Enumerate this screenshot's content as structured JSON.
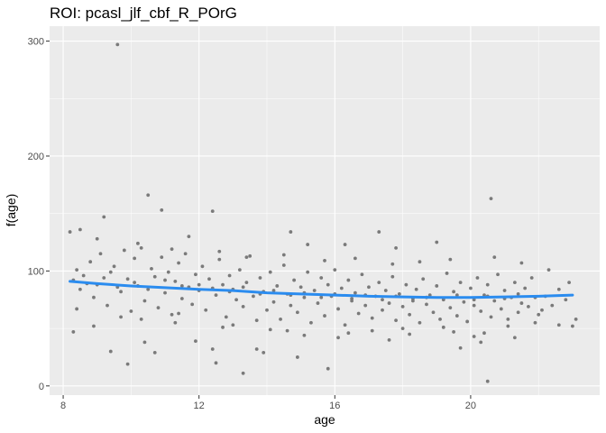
{
  "chart_data": {
    "type": "scatter",
    "title": "ROI: pcasl_jlf_cbf_R_POrG",
    "xlabel": "age",
    "ylabel": "f(age)",
    "xlim": [
      7.6,
      23.8
    ],
    "ylim": [
      -8,
      313
    ],
    "x_ticks": [
      8,
      12,
      16,
      20
    ],
    "x_tick_labels": [
      "8",
      "12",
      "16",
      "20"
    ],
    "y_ticks": [
      0,
      100,
      200,
      300
    ],
    "y_tick_labels": [
      "0",
      "100",
      "200",
      "300"
    ],
    "grid": true,
    "legend": "none",
    "colors": {
      "panel": "#ebebeb",
      "grid": "#ffffff",
      "points": "#7a7a7a",
      "fit_line": "#2b8cef"
    },
    "points": [
      [
        9.6,
        297
      ],
      [
        10.5,
        166
      ],
      [
        10.9,
        153
      ],
      [
        12.4,
        152
      ],
      [
        9.2,
        147
      ],
      [
        20.6,
        163
      ],
      [
        14.7,
        134
      ],
      [
        17.3,
        134
      ],
      [
        8.2,
        134
      ],
      [
        8.5,
        136
      ],
      [
        11.7,
        130
      ],
      [
        19.0,
        125
      ],
      [
        15.2,
        123
      ],
      [
        16.3,
        123
      ],
      [
        17.8,
        120
      ],
      [
        9.4,
        30
      ],
      [
        9.9,
        19
      ],
      [
        10.4,
        38
      ],
      [
        10.7,
        29
      ],
      [
        11.9,
        39
      ],
      [
        12.4,
        32
      ],
      [
        12.5,
        20
      ],
      [
        13.3,
        11
      ],
      [
        13.7,
        32
      ],
      [
        13.9,
        29
      ],
      [
        14.9,
        25
      ],
      [
        15.8,
        15
      ],
      [
        17.6,
        40
      ],
      [
        19.7,
        33
      ],
      [
        20.3,
        38
      ],
      [
        20.4,
        46
      ],
      [
        20.5,
        4
      ],
      [
        21.3,
        42
      ],
      [
        8.3,
        47
      ],
      [
        8.9,
        52
      ],
      [
        10.3,
        58
      ],
      [
        11.4,
        63
      ],
      [
        13.0,
        53
      ],
      [
        14.1,
        49
      ],
      [
        15.1,
        44
      ],
      [
        16.1,
        42
      ],
      [
        17.1,
        48
      ],
      [
        18.2,
        45
      ],
      [
        19.2,
        51
      ],
      [
        20.1,
        43
      ],
      [
        21.9,
        55
      ],
      [
        22.6,
        53
      ],
      [
        23.0,
        52
      ],
      [
        22.9,
        90
      ],
      [
        23.1,
        58
      ],
      [
        8.3,
        92
      ],
      [
        8.4,
        101
      ],
      [
        8.5,
        84
      ],
      [
        8.6,
        96
      ],
      [
        8.8,
        108
      ],
      [
        8.9,
        77
      ],
      [
        9.0,
        88
      ],
      [
        9.1,
        115
      ],
      [
        9.3,
        70
      ],
      [
        9.4,
        99
      ],
      [
        9.5,
        104
      ],
      [
        9.7,
        82
      ],
      [
        9.8,
        118
      ],
      [
        9.9,
        93
      ],
      [
        10.0,
        65
      ],
      [
        10.1,
        111
      ],
      [
        10.2,
        87
      ],
      [
        10.3,
        120
      ],
      [
        10.4,
        74
      ],
      [
        10.6,
        102
      ],
      [
        10.7,
        95
      ],
      [
        10.8,
        68
      ],
      [
        10.9,
        112
      ],
      [
        11.0,
        81
      ],
      [
        11.1,
        99
      ],
      [
        11.2,
        62
      ],
      [
        11.3,
        91
      ],
      [
        11.4,
        107
      ],
      [
        11.5,
        76
      ],
      [
        11.6,
        115
      ],
      [
        11.7,
        86
      ],
      [
        11.8,
        71
      ],
      [
        11.9,
        97
      ],
      [
        12.0,
        83
      ],
      [
        12.1,
        104
      ],
      [
        12.2,
        66
      ],
      [
        12.3,
        93
      ],
      [
        12.5,
        79
      ],
      [
        12.6,
        110
      ],
      [
        12.7,
        88
      ],
      [
        12.8,
        60
      ],
      [
        12.9,
        96
      ],
      [
        13.0,
        84
      ],
      [
        13.1,
        75
      ],
      [
        13.2,
        101
      ],
      [
        13.3,
        69
      ],
      [
        13.4,
        90
      ],
      [
        13.5,
        113
      ],
      [
        13.6,
        78
      ],
      [
        13.7,
        57
      ],
      [
        13.8,
        94
      ],
      [
        13.9,
        82
      ],
      [
        14.0,
        66
      ],
      [
        14.1,
        99
      ],
      [
        14.2,
        73
      ],
      [
        14.3,
        87
      ],
      [
        14.4,
        58
      ],
      [
        14.5,
        105
      ],
      [
        14.6,
        80
      ],
      [
        14.7,
        70
      ],
      [
        14.8,
        92
      ],
      [
        14.9,
        64
      ],
      [
        15.0,
        86
      ],
      [
        15.1,
        77
      ],
      [
        15.2,
        99
      ],
      [
        15.3,
        55
      ],
      [
        15.4,
        83
      ],
      [
        15.5,
        72
      ],
      [
        15.6,
        94
      ],
      [
        15.7,
        61
      ],
      [
        15.8,
        88
      ],
      [
        15.9,
        78
      ],
      [
        16.0,
        101
      ],
      [
        16.1,
        67
      ],
      [
        16.2,
        85
      ],
      [
        16.3,
        53
      ],
      [
        16.4,
        92
      ],
      [
        16.5,
        74
      ],
      [
        16.6,
        81
      ],
      [
        16.7,
        63
      ],
      [
        16.8,
        97
      ],
      [
        16.9,
        70
      ],
      [
        17.0,
        86
      ],
      [
        17.1,
        59
      ],
      [
        17.2,
        78
      ],
      [
        17.3,
        90
      ],
      [
        17.4,
        66
      ],
      [
        17.5,
        83
      ],
      [
        17.6,
        72
      ],
      [
        17.7,
        95
      ],
      [
        17.8,
        57
      ],
      [
        17.9,
        80
      ],
      [
        18.0,
        69
      ],
      [
        18.1,
        88
      ],
      [
        18.2,
        62
      ],
      [
        18.3,
        76
      ],
      [
        18.4,
        84
      ],
      [
        18.5,
        55
      ],
      [
        18.6,
        93
      ],
      [
        18.7,
        71
      ],
      [
        18.8,
        79
      ],
      [
        18.9,
        64
      ],
      [
        19.0,
        87
      ],
      [
        19.1,
        58
      ],
      [
        19.2,
        75
      ],
      [
        19.3,
        98
      ],
      [
        19.4,
        68
      ],
      [
        19.5,
        82
      ],
      [
        19.6,
        61
      ],
      [
        19.7,
        90
      ],
      [
        19.8,
        73
      ],
      [
        19.9,
        56
      ],
      [
        20.0,
        85
      ],
      [
        20.1,
        70
      ],
      [
        20.2,
        94
      ],
      [
        20.3,
        65
      ],
      [
        20.4,
        79
      ],
      [
        20.5,
        88
      ],
      [
        20.6,
        60
      ],
      [
        20.7,
        74
      ],
      [
        20.8,
        97
      ],
      [
        20.9,
        67
      ],
      [
        21.0,
        83
      ],
      [
        21.1,
        58
      ],
      [
        21.2,
        77
      ],
      [
        21.3,
        90
      ],
      [
        21.4,
        64
      ],
      [
        21.5,
        72
      ],
      [
        21.6,
        85
      ],
      [
        21.7,
        69
      ],
      [
        21.8,
        94
      ],
      [
        22.0,
        62
      ],
      [
        22.2,
        78
      ],
      [
        22.4,
        70
      ],
      [
        22.6,
        84
      ],
      [
        22.8,
        75
      ],
      [
        8.7,
        89
      ],
      [
        9.2,
        94
      ],
      [
        9.6,
        86
      ],
      [
        10.1,
        90
      ],
      [
        10.5,
        84
      ],
      [
        11.0,
        92
      ],
      [
        11.5,
        87
      ],
      [
        12.0,
        88
      ],
      [
        12.4,
        85
      ],
      [
        12.9,
        82
      ],
      [
        13.3,
        86
      ],
      [
        13.8,
        80
      ],
      [
        14.2,
        83
      ],
      [
        14.7,
        79
      ],
      [
        15.1,
        81
      ],
      [
        15.6,
        77
      ],
      [
        16.0,
        80
      ],
      [
        16.5,
        76
      ],
      [
        16.9,
        79
      ],
      [
        17.4,
        75
      ],
      [
        17.8,
        78
      ],
      [
        18.3,
        74
      ],
      [
        18.7,
        77
      ],
      [
        19.2,
        76
      ],
      [
        19.6,
        79
      ],
      [
        20.1,
        75
      ],
      [
        20.5,
        78
      ],
      [
        21.0,
        76
      ],
      [
        21.4,
        80
      ],
      [
        21.9,
        77
      ],
      [
        9.0,
        128
      ],
      [
        10.2,
        124
      ],
      [
        11.2,
        119
      ],
      [
        12.6,
        117
      ],
      [
        13.4,
        112
      ],
      [
        14.5,
        114
      ],
      [
        15.7,
        109
      ],
      [
        16.6,
        111
      ],
      [
        17.7,
        106
      ],
      [
        18.5,
        108
      ],
      [
        19.4,
        110
      ],
      [
        20.7,
        112
      ],
      [
        21.5,
        107
      ],
      [
        22.3,
        101
      ],
      [
        8.4,
        67
      ],
      [
        9.7,
        60
      ],
      [
        11.3,
        55
      ],
      [
        12.7,
        51
      ],
      [
        14.6,
        48
      ],
      [
        16.4,
        46
      ],
      [
        18.0,
        50
      ],
      [
        19.5,
        47
      ],
      [
        21.1,
        52
      ],
      [
        22.1,
        66
      ]
    ],
    "fit_line": {
      "x": [
        8.2,
        9,
        10,
        11,
        12,
        13,
        14,
        15,
        16,
        17,
        18,
        19,
        20,
        21,
        22,
        23
      ],
      "y": [
        91,
        89,
        87,
        85.5,
        84,
        83,
        81,
        80,
        79,
        78,
        77.5,
        77,
        77,
        77.5,
        78,
        79
      ]
    }
  }
}
